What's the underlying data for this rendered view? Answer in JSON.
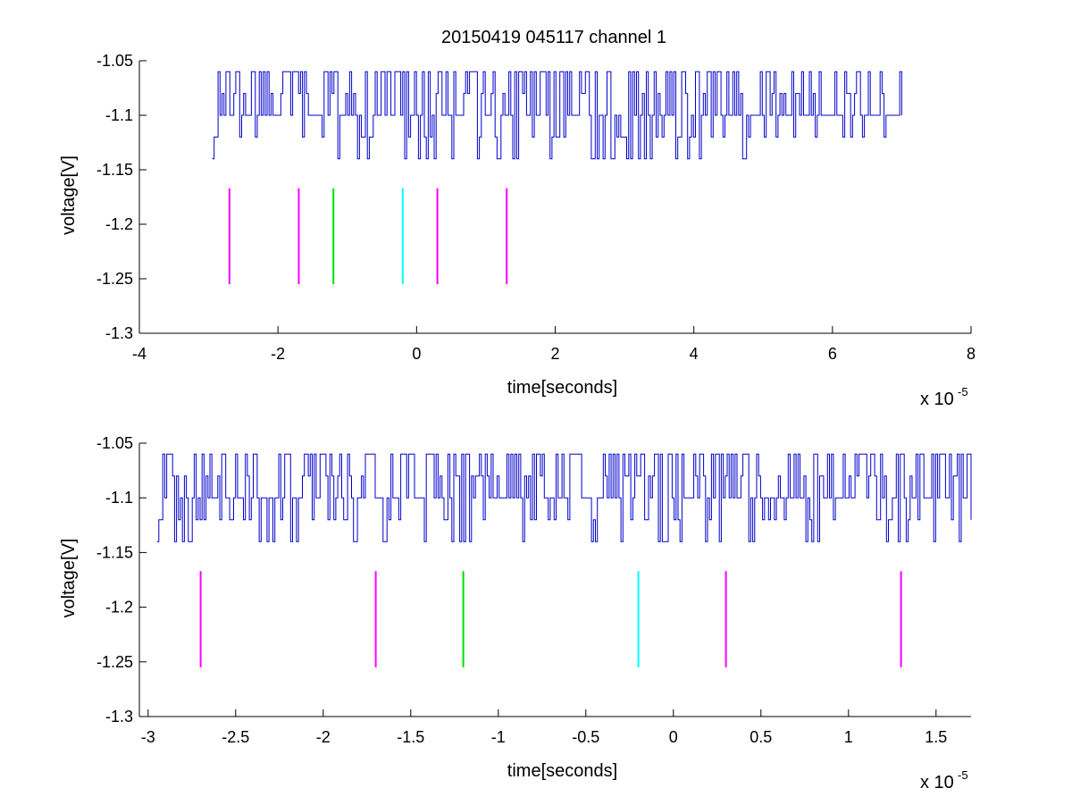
{
  "figure": {
    "title": "20150419 045117 channel 1",
    "trace_color": "#0000cc",
    "marker_colors": {
      "magenta": "#ff00ff",
      "green": "#00e000",
      "cyan": "#00ffff"
    }
  },
  "chart_data": [
    {
      "type": "line",
      "title": "20150419 045117 channel 1",
      "xlabel": "time[seconds]",
      "ylabel": "voltage[V]",
      "x_multiplier_text": "x 10",
      "x_multiplier_exponent": "-5",
      "xlim": [
        -4,
        8
      ],
      "ylim": [
        -1.3,
        -1.05
      ],
      "x_ticks": [
        -4,
        -2,
        0,
        2,
        4,
        6,
        8
      ],
      "x_tick_labels": [
        "-4",
        "-2",
        "0",
        "2",
        "4",
        "6",
        "8"
      ],
      "y_ticks": [
        -1.05,
        -1.1,
        -1.15,
        -1.2,
        -1.25,
        -1.3
      ],
      "y_tick_labels": [
        "-1.05",
        "-1.1",
        "-1.15",
        "-1.2",
        "-1.25",
        "-1.3"
      ],
      "series": [
        {
          "color": "#0000cc",
          "x_start": -2.95,
          "x_end": 7.0,
          "quantization_levels": [
            -1.06,
            -1.08,
            -1.1,
            -1.12,
            -1.14
          ],
          "low_dips_until": 4.8,
          "seed": 17
        }
      ],
      "markers": [
        {
          "x": -2.7,
          "y0": -1.255,
          "y1": -1.167,
          "color": "#ff00ff"
        },
        {
          "x": -1.7,
          "y0": -1.255,
          "y1": -1.167,
          "color": "#ff00ff"
        },
        {
          "x": -1.2,
          "y0": -1.255,
          "y1": -1.167,
          "color": "#00e000"
        },
        {
          "x": -0.2,
          "y0": -1.255,
          "y1": -1.167,
          "color": "#00ffff"
        },
        {
          "x": 0.3,
          "y0": -1.255,
          "y1": -1.167,
          "color": "#ff00ff"
        },
        {
          "x": 1.3,
          "y0": -1.255,
          "y1": -1.167,
          "color": "#ff00ff"
        }
      ]
    },
    {
      "type": "line",
      "title": "",
      "xlabel": "time[seconds]",
      "ylabel": "voltage[V]",
      "x_multiplier_text": "x 10",
      "x_multiplier_exponent": "-5",
      "xlim": [
        -3.05,
        1.7
      ],
      "ylim": [
        -1.3,
        -1.05
      ],
      "x_ticks": [
        -3,
        -2.5,
        -2,
        -1.5,
        -1,
        -0.5,
        0,
        0.5,
        1,
        1.5
      ],
      "x_tick_labels": [
        "-3",
        "-2.5",
        "-2",
        "-1.5",
        "-1",
        "-0.5",
        "0",
        "0.5",
        "1",
        "1.5"
      ],
      "y_ticks": [
        -1.05,
        -1.1,
        -1.15,
        -1.2,
        -1.25,
        -1.3
      ],
      "y_tick_labels": [
        "-1.05",
        "-1.1",
        "-1.15",
        "-1.2",
        "-1.25",
        "-1.3"
      ],
      "series": [
        {
          "color": "#0000cc",
          "x_start": -2.95,
          "x_end": 1.7,
          "quantization_levels": [
            -1.06,
            -1.08,
            -1.1,
            -1.12,
            -1.14
          ],
          "low_dips_until": 1.7,
          "seed": 41
        }
      ],
      "markers": [
        {
          "x": -2.7,
          "y0": -1.255,
          "y1": -1.167,
          "color": "#ff00ff"
        },
        {
          "x": -1.7,
          "y0": -1.255,
          "y1": -1.167,
          "color": "#ff00ff"
        },
        {
          "x": -1.2,
          "y0": -1.255,
          "y1": -1.167,
          "color": "#00e000"
        },
        {
          "x": -0.2,
          "y0": -1.255,
          "y1": -1.167,
          "color": "#00ffff"
        },
        {
          "x": 0.3,
          "y0": -1.255,
          "y1": -1.167,
          "color": "#ff00ff"
        },
        {
          "x": 1.3,
          "y0": -1.255,
          "y1": -1.167,
          "color": "#ff00ff"
        }
      ]
    }
  ]
}
